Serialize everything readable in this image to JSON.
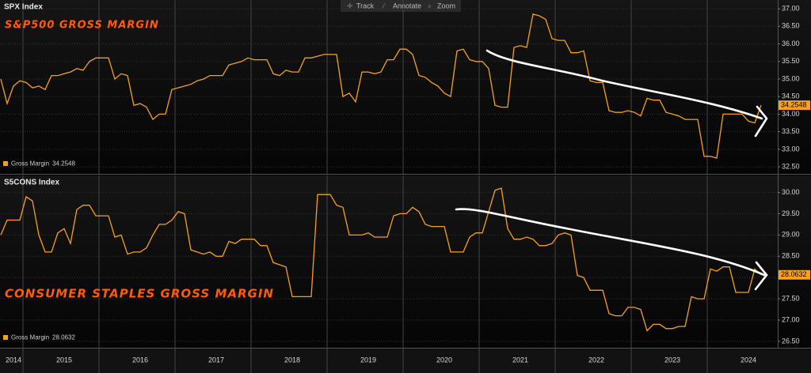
{
  "toolbar": [
    "Track",
    "Annotate",
    "Zoom"
  ],
  "chart_data": [
    {
      "type": "line",
      "title": "SPX Index",
      "annotation": "S&P500 GROSS MARGIN",
      "categories": [
        null,
        null,
        "2014",
        null,
        null,
        null,
        null,
        null,
        null,
        null,
        "2015",
        null,
        null,
        null,
        null,
        null,
        null,
        null,
        null,
        null,
        null,
        null,
        "2016",
        null,
        null,
        null,
        null,
        null,
        null,
        null,
        null,
        null,
        null,
        null,
        "2017",
        null,
        null,
        null,
        null,
        null,
        null,
        null,
        null,
        null,
        null,
        null,
        "2018",
        null,
        null,
        null,
        null,
        null,
        null,
        null,
        null,
        null,
        null,
        null,
        "2019",
        null,
        null,
        null,
        null,
        null,
        null,
        null,
        null,
        null,
        null,
        null,
        "2020",
        null,
        null,
        null,
        null,
        null,
        null,
        null,
        null,
        null,
        null,
        null,
        "2021",
        null,
        null,
        null,
        null,
        null,
        null,
        null,
        null,
        null,
        null,
        null,
        "2022",
        null,
        null,
        null,
        null,
        null,
        null,
        null,
        null,
        null,
        null,
        null,
        "2023",
        null,
        null,
        null,
        null,
        null,
        null,
        null,
        null,
        null,
        null,
        null,
        "2024",
        null,
        null
      ],
      "series": [
        {
          "name": "Gross Margin",
          "color": "#f7a11a",
          "values": [
            35.0,
            34.3,
            34.8,
            34.95,
            34.9,
            34.75,
            34.8,
            34.7,
            35.1,
            35.1,
            35.15,
            35.2,
            35.3,
            35.25,
            35.5,
            35.6,
            35.6,
            35.6,
            35.0,
            35.15,
            35.1,
            34.25,
            34.3,
            34.2,
            33.85,
            34.0,
            34.0,
            34.7,
            34.75,
            34.8,
            34.85,
            34.95,
            35.0,
            35.1,
            35.1,
            35.1,
            35.4,
            35.45,
            35.5,
            35.6,
            35.55,
            35.55,
            35.55,
            35.15,
            35.1,
            35.25,
            35.2,
            35.2,
            35.6,
            35.6,
            35.65,
            35.7,
            35.7,
            35.7,
            34.5,
            34.6,
            34.35,
            35.2,
            35.2,
            35.15,
            35.2,
            35.55,
            35.55,
            35.85,
            35.85,
            35.7,
            35.1,
            35.05,
            34.9,
            34.8,
            34.6,
            34.5,
            35.8,
            35.85,
            35.55,
            35.5,
            35.5,
            35.3,
            34.25,
            34.2,
            34.2,
            35.9,
            35.95,
            35.9,
            36.85,
            36.8,
            36.7,
            36.15,
            36.1,
            36.1,
            35.75,
            35.75,
            35.8,
            34.95,
            34.9,
            34.9,
            34.1,
            34.05,
            34.05,
            34.1,
            34.05,
            33.95,
            34.45,
            34.4,
            34.4,
            34.05,
            34.0,
            33.95,
            33.85,
            33.85,
            33.85,
            32.8,
            32.8,
            32.75,
            34.0,
            34.0,
            34.0,
            34.0,
            33.8,
            33.75,
            34.2548
          ]
        }
      ],
      "ylim": [
        32.3,
        37.25
      ],
      "yticks": [
        {
          "value": 32.5,
          "label": "32.50"
        },
        {
          "value": 33,
          "label": "33.00"
        },
        {
          "value": 33.5,
          "label": "33.50"
        },
        {
          "value": 34,
          "label": "34.00"
        },
        {
          "value": 34.5,
          "label": "34.50"
        },
        {
          "value": 35,
          "label": "35.00"
        },
        {
          "value": 35.5,
          "label": "35.50"
        },
        {
          "value": 36,
          "label": "36.00"
        },
        {
          "value": 36.5,
          "label": "36.50"
        },
        {
          "value": 37,
          "label": "37.00"
        }
      ],
      "grid": true
    },
    {
      "type": "line",
      "title": "S5CONS Index",
      "annotation": "CONSUMER STAPLES GROSS MARGIN",
      "categories": [
        null,
        null,
        "2014",
        null,
        null,
        null,
        null,
        null,
        null,
        null,
        "2015",
        null,
        null,
        null,
        null,
        null,
        null,
        null,
        null,
        null,
        null,
        null,
        "2016",
        null,
        null,
        null,
        null,
        null,
        null,
        null,
        null,
        null,
        null,
        null,
        "2017",
        null,
        null,
        null,
        null,
        null,
        null,
        null,
        null,
        null,
        null,
        null,
        "2018",
        null,
        null,
        null,
        null,
        null,
        null,
        null,
        null,
        null,
        null,
        null,
        "2019",
        null,
        null,
        null,
        null,
        null,
        null,
        null,
        null,
        null,
        null,
        null,
        "2020",
        null,
        null,
        null,
        null,
        null,
        null,
        null,
        null,
        null,
        null,
        null,
        "2021",
        null,
        null,
        null,
        null,
        null,
        null,
        null,
        null,
        null,
        null,
        null,
        "2022",
        null,
        null,
        null,
        null,
        null,
        null,
        null,
        null,
        null,
        null,
        null,
        "2023",
        null,
        null,
        null,
        null,
        null,
        null,
        null,
        null,
        null,
        null,
        null,
        "2024",
        null,
        null
      ],
      "series": [
        {
          "name": "Gross Margin",
          "color": "#f7a11a",
          "values": [
            29.0,
            29.35,
            29.35,
            29.35,
            29.9,
            29.8,
            29.0,
            28.6,
            28.6,
            29.05,
            29.15,
            28.8,
            29.6,
            29.7,
            29.7,
            29.45,
            29.45,
            29.45,
            28.95,
            29.0,
            28.55,
            28.6,
            28.6,
            28.7,
            29.0,
            29.25,
            29.25,
            29.35,
            29.55,
            29.5,
            28.65,
            28.6,
            28.55,
            28.6,
            28.5,
            28.5,
            28.85,
            28.8,
            28.9,
            28.9,
            28.9,
            28.75,
            28.75,
            28.35,
            28.3,
            28.25,
            27.55,
            27.55,
            27.55,
            27.55,
            29.95,
            29.95,
            29.95,
            29.7,
            29.65,
            29.0,
            29.0,
            29.0,
            29.05,
            28.95,
            28.95,
            28.95,
            29.45,
            29.5,
            29.5,
            29.65,
            29.55,
            29.25,
            29.2,
            29.2,
            29.2,
            28.6,
            28.6,
            28.6,
            28.95,
            29.05,
            29.05,
            29.55,
            30.05,
            30.1,
            29.15,
            28.9,
            28.9,
            28.95,
            28.9,
            28.75,
            28.75,
            28.8,
            29.0,
            29.05,
            29.0,
            28.05,
            28.0,
            27.7,
            27.7,
            27.7,
            27.15,
            27.1,
            27.1,
            27.3,
            27.3,
            27.25,
            26.75,
            26.9,
            26.9,
            26.8,
            26.8,
            26.85,
            26.85,
            27.55,
            27.5,
            27.5,
            28.2,
            28.15,
            28.25,
            28.25,
            27.65,
            27.65,
            27.65,
            28.2,
            28.0632
          ]
        }
      ],
      "ylim": [
        26.35,
        30.4
      ],
      "yticks": [
        {
          "value": 26.5,
          "label": "26.50"
        },
        {
          "value": 27,
          "label": "27.00"
        },
        {
          "value": 27.5,
          "label": "27.50"
        },
        {
          "value": 28,
          "label": "28.00"
        },
        {
          "value": 28.5,
          "label": "28.50"
        },
        {
          "value": 29,
          "label": "29.00"
        },
        {
          "value": 29.5,
          "label": "29.50"
        },
        {
          "value": 30,
          "label": "30.00"
        }
      ],
      "grid": true
    }
  ]
}
